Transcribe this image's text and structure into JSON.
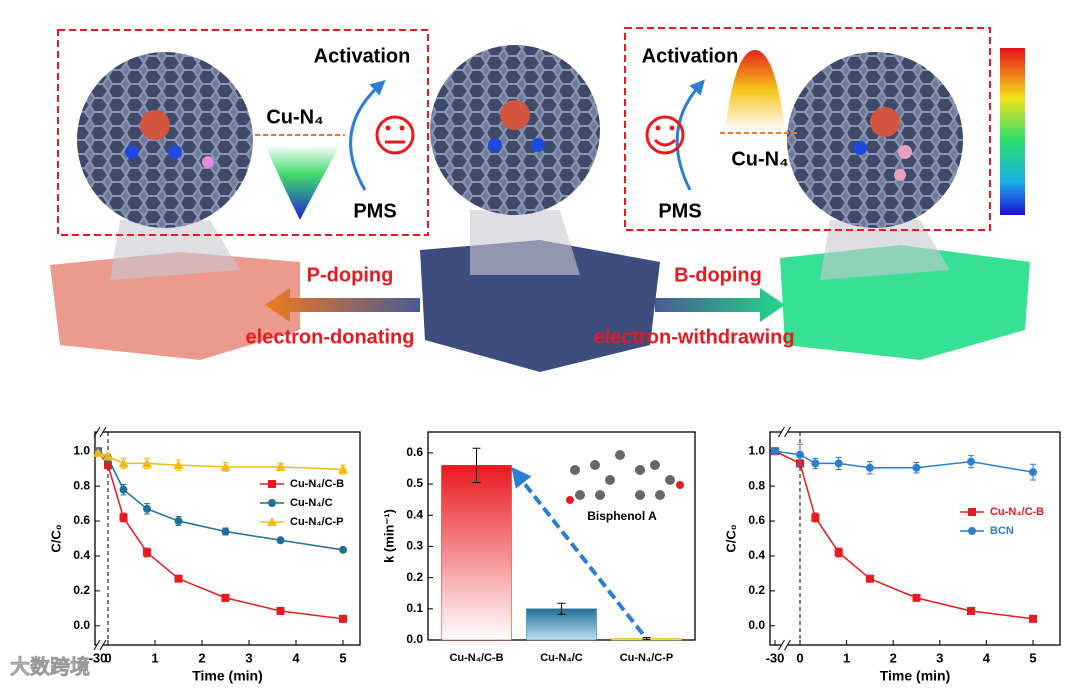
{
  "diagram": {
    "left_activation": "Activation",
    "left_site": "Cu-N₄",
    "left_oxidant": "PMS",
    "right_activation": "Activation",
    "right_site": "Cu-N₄",
    "right_oxidant": "PMS",
    "left_doping": "P-doping",
    "left_effect": "electron-donating",
    "right_doping": "B-doping",
    "right_effect": "electron-withdrawing",
    "watermark": "大数跨境"
  },
  "chart_data": [
    {
      "type": "line",
      "xlabel": "Time (min)",
      "ylabel": "C/C₀",
      "x": [
        -30,
        0,
        0.33,
        0.83,
        1.5,
        2.5,
        3.67,
        5
      ],
      "xlim": [
        -30,
        5
      ],
      "xbreak": true,
      "xticks": [
        -30,
        0,
        1,
        2,
        3,
        4,
        5
      ],
      "ylim": [
        -0.11,
        1.11
      ],
      "yticks": [
        {
          "value": 0,
          "label": "0.0"
        },
        {
          "value": 0.2,
          "label": "0.2"
        },
        {
          "value": 0.4,
          "label": "0.4"
        },
        {
          "value": 0.6,
          "label": "0.6"
        },
        {
          "value": 0.8,
          "label": "0.8"
        },
        {
          "value": 1,
          "label": "1.0"
        }
      ],
      "legend": "upper right",
      "series": [
        {
          "name": "Cu-N₄/C-B",
          "color": "#e8191f",
          "marker": "square",
          "values": [
            1.0,
            0.92,
            0.62,
            0.42,
            0.27,
            0.16,
            0.085,
            0.04
          ],
          "errors": [
            0.01,
            0.02,
            0.025,
            0.025,
            0.015,
            0.01,
            0.01,
            0.01
          ]
        },
        {
          "name": "Cu-N₄/C",
          "color": "#1f6f96",
          "marker": "circle",
          "values": [
            1.0,
            0.96,
            0.78,
            0.67,
            0.6,
            0.54,
            0.49,
            0.435
          ],
          "errors": [
            0.01,
            0.02,
            0.03,
            0.03,
            0.025,
            0.02,
            0.01,
            0.01
          ]
        },
        {
          "name": "Cu-N₄/C-P",
          "color": "#f2b90f",
          "marker": "triangle",
          "values": [
            0.99,
            0.97,
            0.93,
            0.93,
            0.92,
            0.91,
            0.91,
            0.895
          ],
          "errors": [
            0.01,
            0.02,
            0.03,
            0.03,
            0.03,
            0.025,
            0.02,
            0.025
          ]
        }
      ]
    },
    {
      "type": "bar",
      "ylabel": "k (min⁻¹)",
      "annotation": "Bisphenol A",
      "categories": [
        "Cu-N₄/C-B",
        "Cu-N₄/C",
        "Cu-N₄/C-P"
      ],
      "values": [
        0.56,
        0.1,
        0.005
      ],
      "errors": [
        0.055,
        0.018,
        0.003
      ],
      "colors": [
        "#e8191f",
        "#1f6f96",
        "#f2b90f"
      ],
      "ylim": [
        0,
        0.667
      ],
      "yticks": [
        {
          "value": 0,
          "label": "0.0"
        },
        {
          "value": 0.1,
          "label": "0.1"
        },
        {
          "value": 0.2,
          "label": "0.2"
        },
        {
          "value": 0.3,
          "label": "0.3"
        },
        {
          "value": 0.4,
          "label": "0.4"
        },
        {
          "value": 0.5,
          "label": "0.5"
        },
        {
          "value": 0.6,
          "label": "0.6"
        }
      ]
    },
    {
      "type": "line",
      "xlabel": "Time (min)",
      "ylabel": "C/C₀",
      "x": [
        -30,
        0,
        0.33,
        0.83,
        1.5,
        2.5,
        3.67,
        5
      ],
      "xlim": [
        -30,
        5
      ],
      "xbreak": true,
      "xticks": [
        -30,
        0,
        1,
        2,
        3,
        4,
        5
      ],
      "ylim": [
        -0.11,
        1.11
      ],
      "yticks": [
        {
          "value": 0,
          "label": "0.0"
        },
        {
          "value": 0.2,
          "label": "0.2"
        },
        {
          "value": 0.4,
          "label": "0.4"
        },
        {
          "value": 0.6,
          "label": "0.6"
        },
        {
          "value": 0.8,
          "label": "0.8"
        },
        {
          "value": 1,
          "label": "1.0"
        }
      ],
      "legend": "center right",
      "series": [
        {
          "name": "Cu-N₄/C-B",
          "color": "#e8191f",
          "marker": "square",
          "values": [
            1.0,
            0.93,
            0.62,
            0.42,
            0.27,
            0.16,
            0.085,
            0.04
          ],
          "errors": [
            0.01,
            0.02,
            0.025,
            0.025,
            0.015,
            0.01,
            0.01,
            0.01
          ]
        },
        {
          "name": "BCN",
          "color": "#2a7fd4",
          "marker": "circle",
          "values": [
            1.0,
            0.98,
            0.93,
            0.93,
            0.905,
            0.905,
            0.94,
            0.88
          ],
          "errors": [
            0.01,
            0.06,
            0.03,
            0.035,
            0.035,
            0.03,
            0.035,
            0.045
          ]
        }
      ]
    }
  ]
}
